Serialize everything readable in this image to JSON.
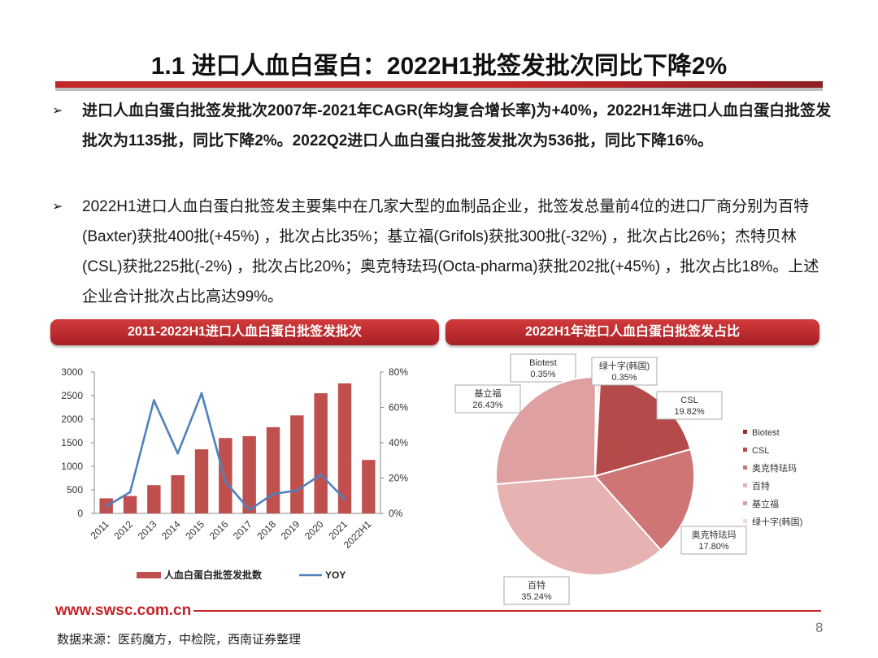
{
  "title": "1.1 进口人血白蛋白：2022H1批签发批次同比下降2%",
  "bullets": [
    "进口人血白蛋白批签发批次2007年-2021年CAGR(年均复合增长率)为+40%，2022H1年进口人血白蛋白批签发批次为1135批，同比下降2%。2022Q2进口人血白蛋白批签发批次为536批，同比下降16%。",
    "2022H1进口人血白蛋白批签发主要集中在几家大型的血制品企业，批签发总量前4位的进口厂商分别为百特(Baxter)获批400批(+45%) ，批次占比35%；基立福(Grifols)获批300批(-32%) ，批次占比26%；杰特贝林(CSL)获批225批(-2%) ，批次占比20%；奥克特珐玛(Octa-pharma)获批202批(+45%) ，批次占比18%。上述企业合计批次占比高达99%。"
  ],
  "bullet_glyph": "➢",
  "panels": {
    "left_title": "2011-2022H1进口人血白蛋白批签发批次",
    "right_title": "2022H1年进口人血白蛋白批签发占比"
  },
  "colors": {
    "accent": "#c3262b",
    "bar": "#c0504d",
    "line": "#4f81bd"
  },
  "chart_data": [
    {
      "type": "bar",
      "categories": [
        "2011",
        "2012",
        "2013",
        "2014",
        "2015",
        "2016",
        "2017",
        "2018",
        "2019",
        "2020",
        "2021",
        "2022H1"
      ],
      "series": [
        {
          "name": "人血白蛋白批签发批数",
          "type": "bar",
          "axis": "left",
          "values": [
            320,
            370,
            600,
            810,
            1360,
            1600,
            1640,
            1830,
            2080,
            2550,
            2760,
            1135
          ]
        },
        {
          "name": "YOY",
          "type": "line",
          "axis": "right",
          "values": [
            0.04,
            0.12,
            0.64,
            0.34,
            0.68,
            0.18,
            0.02,
            0.11,
            0.13,
            0.22,
            0.08,
            null
          ]
        }
      ],
      "y_left_ticks": [
        "3000",
        "2500",
        "2000",
        "1500",
        "1000",
        "500",
        "0"
      ],
      "y_right_ticks": [
        "80%",
        "60%",
        "40%",
        "20%",
        "0%"
      ],
      "ylim_left": [
        0,
        3000
      ],
      "ylim_right": [
        0,
        0.8
      ],
      "legend": "bottom"
    },
    {
      "type": "pie",
      "slices": [
        {
          "label": "Biotest",
          "value": 0.35,
          "value_label": "0.35%",
          "color": "#9b2a2a"
        },
        {
          "label": "CSL",
          "value": 19.82,
          "value_label": "19.82%",
          "color": "#b44a4a"
        },
        {
          "label": "奥克特珐玛",
          "value": 17.8,
          "value_label": "17.80%",
          "color": "#cf7575"
        },
        {
          "label": "百特",
          "value": 35.24,
          "value_label": "35.24%",
          "color": "#e6b2b2"
        },
        {
          "label": "基立福",
          "value": 26.43,
          "value_label": "26.43%",
          "color": "#dea0a0"
        },
        {
          "label": "绿十字(韩国)",
          "value": 0.35,
          "value_label": "0.35%",
          "color": "#f2d7d7"
        }
      ],
      "legend": "right"
    }
  ],
  "footer": {
    "url": "www.swsc.com.cn",
    "page": "8",
    "source": "数据来源：医药魔方，中检院，西南证券整理"
  }
}
